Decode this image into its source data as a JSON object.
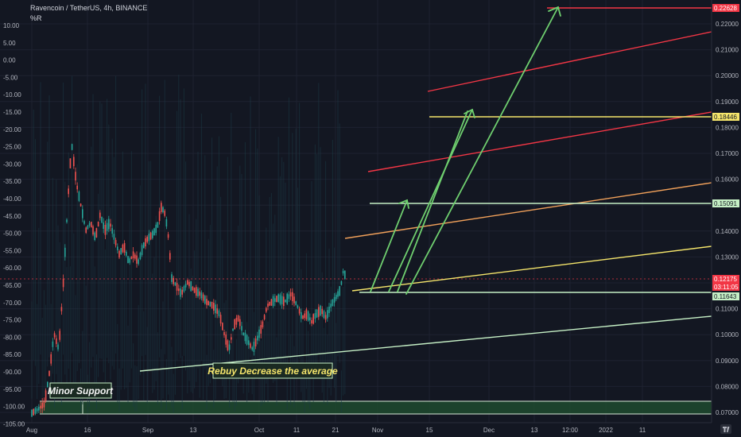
{
  "header": {
    "title": "Ravencoin / TetherUS, 4h, BINANCE",
    "indicator": "%R"
  },
  "colors": {
    "background": "#131722",
    "grid": "#1e2230",
    "axis_text": "#b2b5be",
    "candle_up": "#26a69a",
    "candle_down": "#ef5350",
    "red_line": "#f23645",
    "orange_line": "#f0a05a",
    "yellow_line": "#f5e56b",
    "green_line": "#7ad27a",
    "support_zone": "#1f4a2e"
  },
  "chart_data": {
    "type": "candlestick",
    "title": "Ravencoin / TetherUS, 4h, BINANCE",
    "left_axis": {
      "label": "%R",
      "ticks": [
        "10.00",
        "5.00",
        "0.00",
        "-5.00",
        "-10.00",
        "-15.00",
        "-20.00",
        "-25.00",
        "-30.00",
        "-35.00",
        "-40.00",
        "-45.00",
        "-50.00",
        "-55.00",
        "-60.00",
        "-65.00",
        "-70.00",
        "-75.00",
        "-80.00",
        "-85.00",
        "-90.00",
        "-95.00",
        "-100.00",
        "-105.00"
      ],
      "range": [
        -110,
        10
      ]
    },
    "right_axis": {
      "ticks": [
        "0.22000",
        "0.21000",
        "0.20000",
        "0.19000",
        "0.18000",
        "0.17000",
        "0.16000",
        "0.15000",
        "0.14000",
        "0.13000",
        "0.12000",
        "0.11000",
        "0.10000",
        "0.09000",
        "0.08000",
        "0.07000"
      ],
      "range": [
        0.0685,
        0.2268
      ]
    },
    "x_ticks": [
      "Aug",
      "16",
      "Sep",
      "13",
      "Oct",
      "11",
      "21",
      "Nov",
      "15",
      "Dec",
      "13",
      "12:00",
      "2022",
      "11"
    ],
    "price_labels": [
      {
        "name": "target-3",
        "value": "0.22628",
        "color": "#f23645",
        "text_color": "#ffffff"
      },
      {
        "name": "target-2",
        "value": "0.18446",
        "color": "#f5e56b",
        "text_color": "#131722"
      },
      {
        "name": "target-1",
        "value": "0.15091",
        "color": "#c6f0c6",
        "text_color": "#131722"
      },
      {
        "name": "last-price",
        "value": "0.12175",
        "color": "#f23645",
        "text_color": "#ffffff"
      },
      {
        "name": "countdown",
        "value": "03:11:05",
        "color": "#f23645",
        "text_color": "#ffffff"
      },
      {
        "name": "entry",
        "value": "0.11643",
        "color": "#c6f0c6",
        "text_color": "#131722"
      }
    ],
    "horizontal_levels": [
      {
        "price": 0.22628,
        "from": "Dec 2021",
        "color": "#f23645"
      },
      {
        "price": 0.18446,
        "from": "Nov 2021",
        "color": "#f5e56b"
      },
      {
        "price": 0.15091,
        "from": "Oct 2021",
        "color": "#c6f0c6"
      },
      {
        "price": 0.11643,
        "from": "Oct 2021",
        "color": "#c6f0c6"
      }
    ],
    "annotations": [
      {
        "name": "rebuy-note",
        "text": "Rebuy Decrease the average"
      },
      {
        "name": "minor-support",
        "text": "Minor Support"
      }
    ]
  }
}
